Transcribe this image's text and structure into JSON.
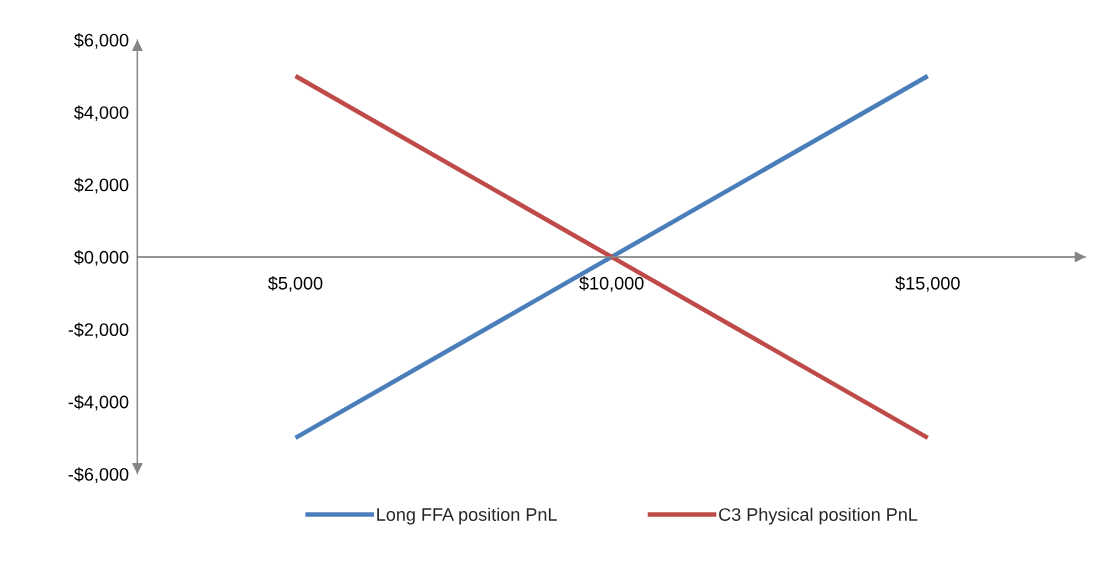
{
  "chart_data": {
    "type": "line",
    "x": [
      5000,
      10000,
      15000
    ],
    "series": [
      {
        "name": "Long FFA position PnL",
        "color": "#4a7ebb",
        "values": [
          -5000,
          0,
          5000
        ]
      },
      {
        "name": "C3 Physical position PnL",
        "color": "#be4b48",
        "values": [
          5000,
          0,
          -5000
        ]
      }
    ],
    "xlim": [
      2500,
      17500
    ],
    "xticks": [
      {
        "value": 5000,
        "label": "$5,000"
      },
      {
        "value": 10000,
        "label": "$10,000"
      },
      {
        "value": 15000,
        "label": "$15,000"
      }
    ],
    "ylim": [
      -6000,
      6000
    ],
    "yticks": [
      {
        "value": -6000,
        "label": "-$6,000"
      },
      {
        "value": -4000,
        "label": "-$4,000"
      },
      {
        "value": -2000,
        "label": "-$2,000"
      },
      {
        "value": 0,
        "label": "$0,000"
      },
      {
        "value": 2000,
        "label": "$2,000"
      },
      {
        "value": 4000,
        "label": "$4,000"
      },
      {
        "value": 6000,
        "label": "$6,000"
      }
    ],
    "grid": false,
    "legend": "bottom",
    "marker": "none",
    "line_style": "solid"
  }
}
